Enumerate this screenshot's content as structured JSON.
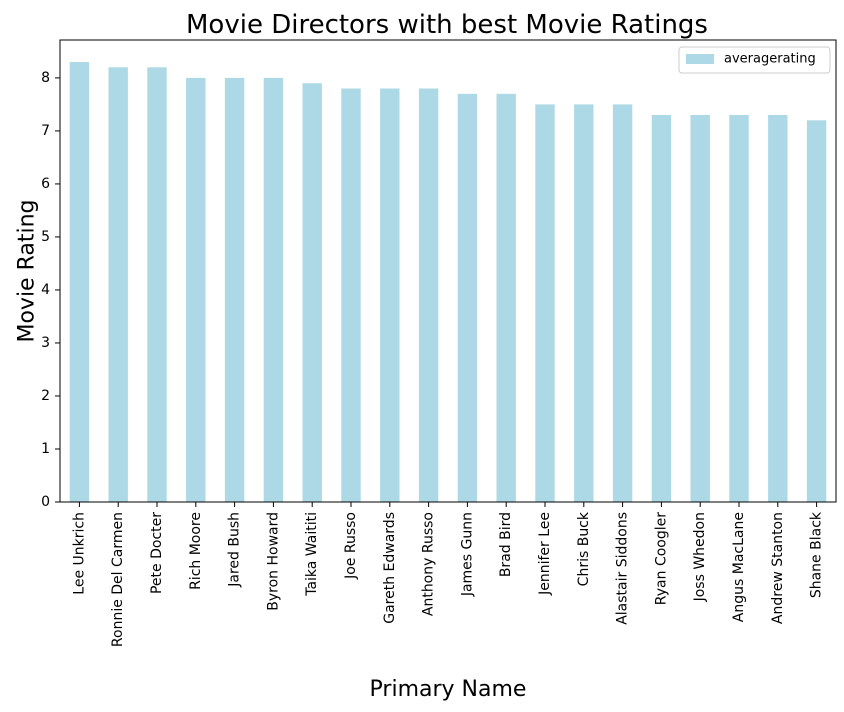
{
  "chart_data": {
    "type": "bar",
    "title": "Movie Directors with best Movie Ratings",
    "xlabel": "Primary Name",
    "ylabel": "Movie Rating",
    "categories": [
      "Lee Unkrich",
      "Ronnie Del Carmen",
      "Pete Docter",
      "Rich Moore",
      "Jared Bush",
      "Byron Howard",
      "Taika Waititi",
      "Joe Russo",
      "Gareth Edwards",
      "Anthony Russo",
      "James Gunn",
      "Brad Bird",
      "Jennifer Lee",
      "Chris Buck",
      "Alastair Siddons",
      "Ryan Coogler",
      "Joss Whedon",
      "Angus MacLane",
      "Andrew Stanton",
      "Shane Black"
    ],
    "series": [
      {
        "name": "averagerating",
        "color": "#add8e6",
        "values": [
          8.3,
          8.2,
          8.2,
          8.0,
          8.0,
          8.0,
          7.9,
          7.8,
          7.8,
          7.8,
          7.7,
          7.7,
          7.5,
          7.5,
          7.5,
          7.3,
          7.3,
          7.3,
          7.3,
          7.2
        ]
      }
    ],
    "ylim": [
      0,
      8.715
    ],
    "yticks": [
      0,
      1,
      2,
      3,
      4,
      5,
      6,
      7,
      8
    ],
    "grid": false,
    "legend_position": "upper right"
  }
}
